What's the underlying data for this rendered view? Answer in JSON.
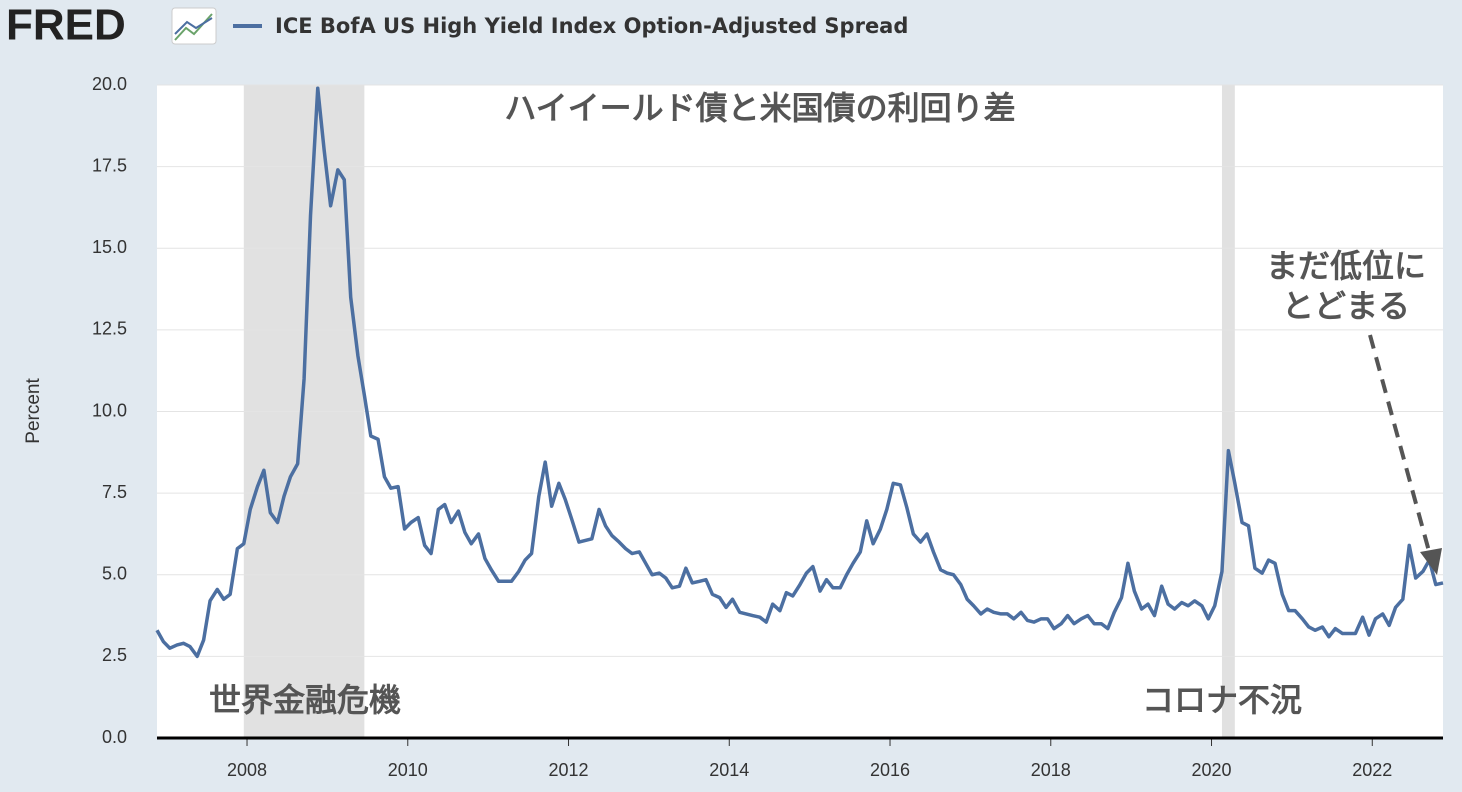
{
  "header": {
    "logo": "FRED"
  },
  "chart_data": {
    "type": "line",
    "y_label": "Percent",
    "series": [
      {
        "name": "ICE BofA US High Yield Index Option-Adjusted Spread",
        "color": "#4c6fa1",
        "x": [
          2006.88,
          2006.96,
          2007.04,
          2007.13,
          2007.21,
          2007.29,
          2007.38,
          2007.46,
          2007.54,
          2007.63,
          2007.71,
          2007.79,
          2007.88,
          2007.96,
          2008.04,
          2008.13,
          2008.21,
          2008.29,
          2008.38,
          2008.46,
          2008.54,
          2008.63,
          2008.71,
          2008.79,
          2008.88,
          2008.96,
          2009.04,
          2009.13,
          2009.21,
          2009.29,
          2009.38,
          2009.46,
          2009.54,
          2009.63,
          2009.71,
          2009.79,
          2009.88,
          2009.96,
          2010.04,
          2010.13,
          2010.21,
          2010.29,
          2010.38,
          2010.46,
          2010.54,
          2010.63,
          2010.71,
          2010.79,
          2010.88,
          2010.96,
          2011.04,
          2011.13,
          2011.21,
          2011.29,
          2011.38,
          2011.46,
          2011.54,
          2011.63,
          2011.71,
          2011.79,
          2011.88,
          2011.96,
          2012.04,
          2012.13,
          2012.21,
          2012.29,
          2012.38,
          2012.46,
          2012.54,
          2012.63,
          2012.71,
          2012.79,
          2012.88,
          2012.96,
          2013.04,
          2013.13,
          2013.21,
          2013.29,
          2013.38,
          2013.46,
          2013.54,
          2013.63,
          2013.71,
          2013.79,
          2013.88,
          2013.96,
          2014.04,
          2014.13,
          2014.21,
          2014.29,
          2014.38,
          2014.46,
          2014.54,
          2014.63,
          2014.71,
          2014.79,
          2014.88,
          2014.96,
          2015.04,
          2015.13,
          2015.21,
          2015.29,
          2015.38,
          2015.46,
          2015.54,
          2015.63,
          2015.71,
          2015.79,
          2015.88,
          2015.96,
          2016.04,
          2016.13,
          2016.21,
          2016.29,
          2016.38,
          2016.46,
          2016.54,
          2016.63,
          2016.71,
          2016.79,
          2016.88,
          2016.96,
          2017.04,
          2017.13,
          2017.21,
          2017.29,
          2017.38,
          2017.46,
          2017.54,
          2017.63,
          2017.71,
          2017.79,
          2017.88,
          2017.96,
          2018.04,
          2018.13,
          2018.21,
          2018.29,
          2018.38,
          2018.46,
          2018.54,
          2018.63,
          2018.71,
          2018.79,
          2018.88,
          2018.96,
          2019.04,
          2019.13,
          2019.21,
          2019.29,
          2019.38,
          2019.46,
          2019.54,
          2019.63,
          2019.71,
          2019.79,
          2019.88,
          2019.96,
          2020.04,
          2020.13,
          2020.21,
          2020.29,
          2020.38,
          2020.46,
          2020.54,
          2020.63,
          2020.71,
          2020.79,
          2020.88,
          2020.96,
          2021.04,
          2021.13,
          2021.21,
          2021.29,
          2021.38,
          2021.46,
          2021.54,
          2021.63,
          2021.71,
          2021.79,
          2021.88,
          2021.96,
          2022.04,
          2022.13,
          2022.21,
          2022.29,
          2022.38,
          2022.46,
          2022.54,
          2022.63,
          2022.71,
          2022.79,
          2022.88
        ],
        "values": [
          3.3,
          2.95,
          2.75,
          2.85,
          2.9,
          2.8,
          2.5,
          3.0,
          4.2,
          4.55,
          4.25,
          4.4,
          5.8,
          5.95,
          7.0,
          7.7,
          8.2,
          6.9,
          6.6,
          7.4,
          8.0,
          8.4,
          11.0,
          16.0,
          19.9,
          18.0,
          16.3,
          17.4,
          17.1,
          13.5,
          11.7,
          10.5,
          9.25,
          9.15,
          8.0,
          7.65,
          7.7,
          6.4,
          6.6,
          6.75,
          5.9,
          5.65,
          7.0,
          7.15,
          6.6,
          6.95,
          6.3,
          5.95,
          6.25,
          5.5,
          5.15,
          4.8,
          4.8,
          4.8,
          5.1,
          5.45,
          5.65,
          7.4,
          8.45,
          7.1,
          7.8,
          7.3,
          6.7,
          6.0,
          6.05,
          6.1,
          7.0,
          6.5,
          6.2,
          6.0,
          5.8,
          5.65,
          5.7,
          5.35,
          5.0,
          5.05,
          4.9,
          4.6,
          4.65,
          5.2,
          4.75,
          4.8,
          4.85,
          4.4,
          4.3,
          4.0,
          4.25,
          3.85,
          3.8,
          3.75,
          3.7,
          3.55,
          4.1,
          3.9,
          4.45,
          4.35,
          4.7,
          5.05,
          5.25,
          4.5,
          4.85,
          4.6,
          4.6,
          5.0,
          5.35,
          5.7,
          6.65,
          5.95,
          6.4,
          7.0,
          7.8,
          7.75,
          7.05,
          6.25,
          6.0,
          6.25,
          5.7,
          5.15,
          5.05,
          5.0,
          4.7,
          4.25,
          4.05,
          3.8,
          3.95,
          3.85,
          3.8,
          3.8,
          3.65,
          3.85,
          3.6,
          3.55,
          3.65,
          3.65,
          3.35,
          3.5,
          3.75,
          3.5,
          3.65,
          3.75,
          3.5,
          3.5,
          3.35,
          3.85,
          4.3,
          5.35,
          4.5,
          3.95,
          4.1,
          3.75,
          4.65,
          4.1,
          3.95,
          4.15,
          4.05,
          4.2,
          4.05,
          3.65,
          4.05,
          5.1,
          8.8,
          7.8,
          6.6,
          6.5,
          5.2,
          5.05,
          5.45,
          5.35,
          4.4,
          3.9,
          3.9,
          3.65,
          3.4,
          3.3,
          3.4,
          3.1,
          3.35,
          3.2,
          3.2,
          3.2,
          3.7,
          3.15,
          3.65,
          3.8,
          3.45,
          4.0,
          4.25,
          5.9,
          4.9,
          5.1,
          5.45,
          4.7,
          4.75
        ]
      }
    ],
    "recessions": [
      [
        2007.96,
        2009.46
      ],
      [
        2020.13,
        2020.29
      ]
    ],
    "recession_color": "#e1e1e1",
    "xlim": [
      2006.88,
      2022.88
    ],
    "xticks": [
      2008,
      2010,
      2012,
      2014,
      2016,
      2018,
      2020,
      2022
    ],
    "ylim": [
      0,
      20
    ],
    "yticks": [
      {
        "value": 0,
        "label": "0.0"
      },
      2.5,
      {
        "value": 5,
        "label": "5.0"
      },
      7.5,
      {
        "value": 10,
        "label": "10.0"
      },
      12.5,
      {
        "value": 15,
        "label": "15.0"
      },
      17.5,
      {
        "value": 20,
        "label": "20.0"
      }
    ],
    "grid": true,
    "annotations": [
      "ハイイールド債と米国債の利回り差",
      "世界金融危機",
      "コロナ不況",
      "まだ低位に",
      "とどまる"
    ]
  }
}
